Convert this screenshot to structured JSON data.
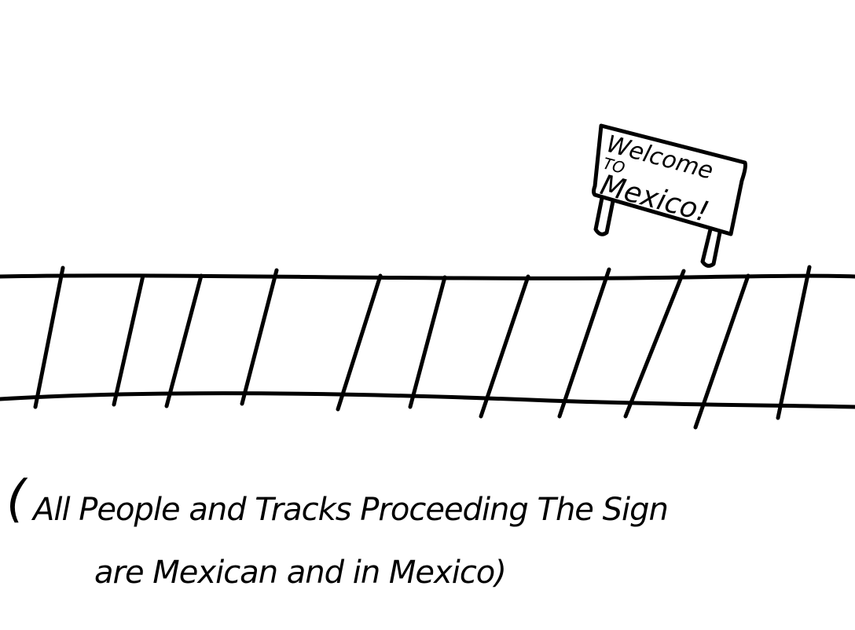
{
  "sign": {
    "line1": "Welcome",
    "line2": "TO",
    "line3": "Mexico!"
  },
  "caption": {
    "open_paren": "(",
    "line1": "All People and Tracks Proceeding The Sign",
    "line2": "are Mexican and in Mexico)"
  },
  "colors": {
    "ink": "#000000",
    "paper": "#ffffff"
  }
}
